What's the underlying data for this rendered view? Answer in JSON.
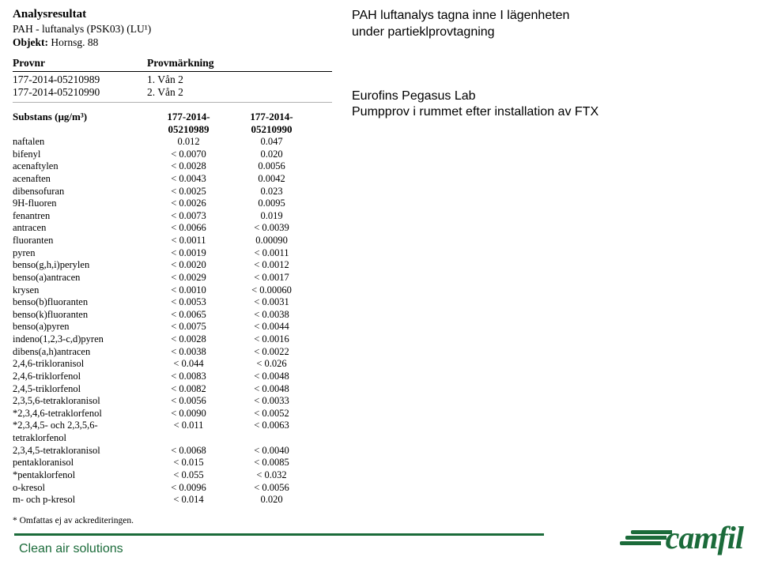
{
  "header": {
    "title": "Analysresultat",
    "analysis_label": "PAH - luftanalys (PSK03) (LU¹)",
    "object_label": "Objekt:",
    "object_value": "Hornsg. 88"
  },
  "prov": {
    "header_provnr": "Provnr",
    "header_marking": "Provmärkning",
    "rows": [
      {
        "nr": "177-2014-05210989",
        "mark": "1. Vån 2"
      },
      {
        "nr": "177-2014-05210990",
        "mark": "2. Vån 2"
      }
    ]
  },
  "subst": {
    "header_name": "Substans (µg/m³)",
    "col1": "177-2014-05210989",
    "col2": "177-2014-05210990",
    "rows": [
      {
        "n": "naftalen",
        "v1": "0.012",
        "v2": "0.047"
      },
      {
        "n": "bifenyl",
        "v1": "< 0.0070",
        "v2": "0.020"
      },
      {
        "n": "acenaftylen",
        "v1": "< 0.0028",
        "v2": "0.0056"
      },
      {
        "n": "acenaften",
        "v1": "< 0.0043",
        "v2": "0.0042"
      },
      {
        "n": "dibensofuran",
        "v1": "< 0.0025",
        "v2": "0.023"
      },
      {
        "n": "9H-fluoren",
        "v1": "< 0.0026",
        "v2": "0.0095"
      },
      {
        "n": "fenantren",
        "v1": "< 0.0073",
        "v2": "0.019"
      },
      {
        "n": "antracen",
        "v1": "< 0.0066",
        "v2": "< 0.0039"
      },
      {
        "n": "fluoranten",
        "v1": "< 0.0011",
        "v2": "0.00090"
      },
      {
        "n": "pyren",
        "v1": "< 0.0019",
        "v2": "< 0.0011"
      },
      {
        "n": "benso(g,h,i)perylen",
        "v1": "< 0.0020",
        "v2": "< 0.0012"
      },
      {
        "n": "benso(a)antracen",
        "v1": "< 0.0029",
        "v2": "< 0.0017"
      },
      {
        "n": "krysen",
        "v1": "< 0.0010",
        "v2": "< 0.00060"
      },
      {
        "n": "benso(b)fluoranten",
        "v1": "< 0.0053",
        "v2": "< 0.0031"
      },
      {
        "n": "benso(k)fluoranten",
        "v1": "< 0.0065",
        "v2": "< 0.0038"
      },
      {
        "n": "benso(a)pyren",
        "v1": "< 0.0075",
        "v2": "< 0.0044"
      },
      {
        "n": "indeno(1,2,3-c,d)pyren",
        "v1": "< 0.0028",
        "v2": "< 0.0016"
      },
      {
        "n": "dibens(a,h)antracen",
        "v1": "< 0.0038",
        "v2": "< 0.0022"
      },
      {
        "n": "2,4,6-trikloranisol",
        "v1": "< 0.044",
        "v2": "< 0.026"
      },
      {
        "n": "2,4,6-triklorfenol",
        "v1": "< 0.0083",
        "v2": "< 0.0048"
      },
      {
        "n": "2,4,5-triklorfenol",
        "v1": "< 0.0082",
        "v2": "< 0.0048"
      },
      {
        "n": "2,3,5,6-tetrakloranisol",
        "v1": "< 0.0056",
        "v2": "< 0.0033"
      },
      {
        "n": "*2,3,4,6-tetraklorfenol",
        "v1": "< 0.0090",
        "v2": "< 0.0052"
      },
      {
        "n": "*2,3,4,5- och 2,3,5,6-tetraklorfenol",
        "v1": "< 0.011",
        "v2": "< 0.0063"
      },
      {
        "n": "2,3,4,5-tetrakloranisol",
        "v1": "< 0.0068",
        "v2": "< 0.0040"
      },
      {
        "n": "pentakloranisol",
        "v1": "< 0.015",
        "v2": "< 0.0085"
      },
      {
        "n": "*pentaklorfenol",
        "v1": "< 0.055",
        "v2": "< 0.032"
      },
      {
        "n": "o-kresol",
        "v1": "< 0.0096",
        "v2": "< 0.0056"
      },
      {
        "n": "m- och p-kresol",
        "v1": "< 0.014",
        "v2": "0.020"
      }
    ]
  },
  "footnote": "* Omfattas ej av ackrediteringen.",
  "notes": {
    "a": "PAH luftanalys tagna inne I lägenheten under partieklprovtagning",
    "b": "Eurofins Pegasus Lab\nPumpprov i rummet efter installation av FTX"
  },
  "footer": {
    "tag": "Clean air solutions",
    "logo_word": "camfil",
    "brand_color": "#1b6b3a"
  }
}
